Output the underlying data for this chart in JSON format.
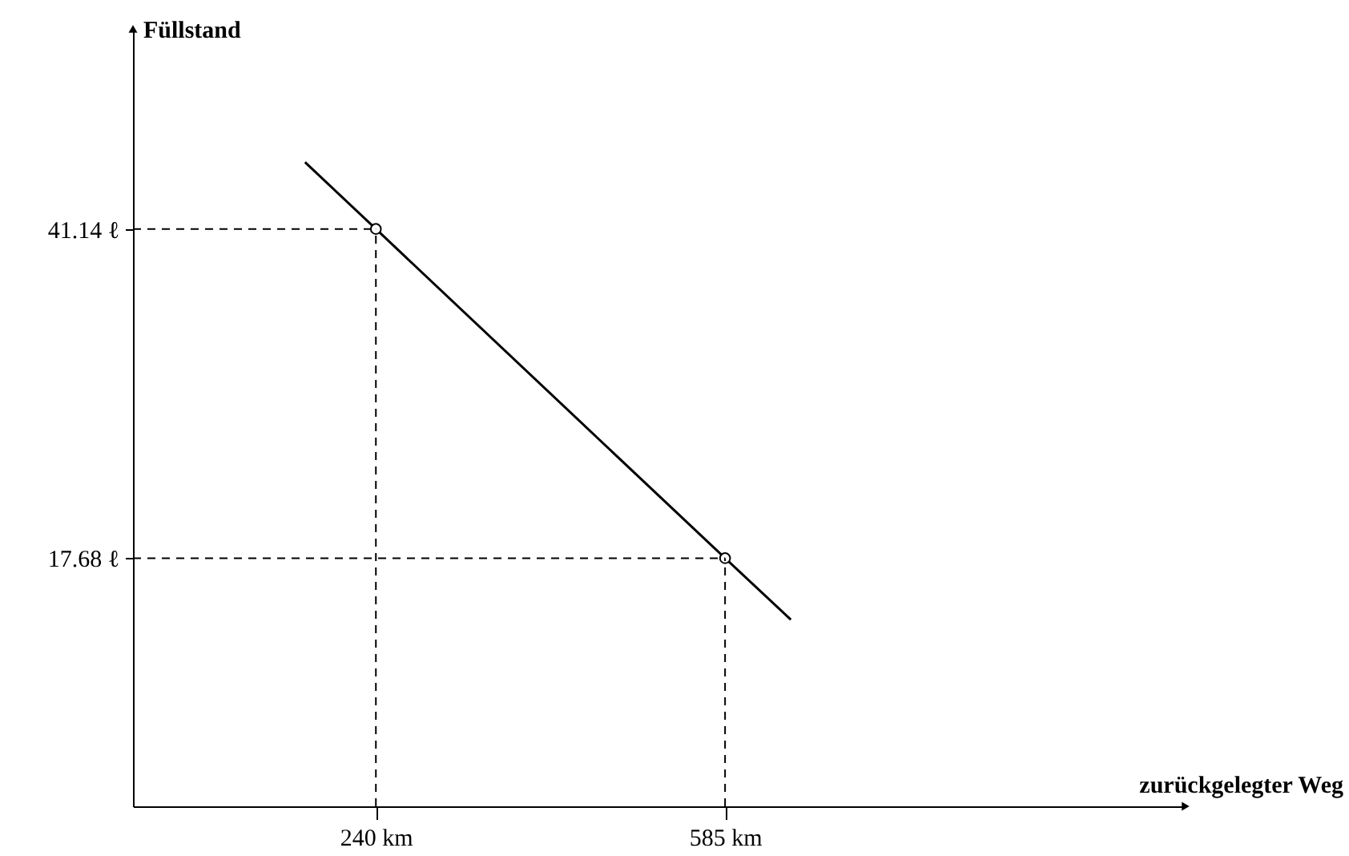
{
  "chart_data": {
    "type": "line",
    "xlabel": "zurückgelegter Weg",
    "ylabel": "Füllstand",
    "xlim": [
      0,
      1040
    ],
    "ylim": [
      0,
      55.4
    ],
    "xticks": [
      {
        "value": 240,
        "label": "240 km"
      },
      {
        "value": 585,
        "label": "585 km"
      }
    ],
    "yticks": [
      {
        "value": 17.68,
        "label": "17.68 ℓ"
      },
      {
        "value": 41.14,
        "label": "41.14 ℓ"
      }
    ],
    "series": [
      {
        "color": "#000000",
        "marker": "none",
        "line_style": "solid",
        "x": [
          170,
          240,
          585,
          650
        ],
        "values": [
          45.9,
          41.14,
          17.68,
          13.3
        ]
      },
      {
        "type": "scatter",
        "color": "#000000",
        "marker": "circle",
        "x": [
          240,
          585
        ],
        "values": [
          41.14,
          17.68
        ]
      }
    ],
    "ref_lines": [
      {
        "axis": "x",
        "value": 240,
        "line_style": "dashed",
        "color": "#000000"
      },
      {
        "axis": "x",
        "value": 585,
        "line_style": "dashed",
        "color": "#000000"
      },
      {
        "axis": "y",
        "value": 41.14,
        "line_style": "dashed",
        "color": "#000000"
      },
      {
        "axis": "y",
        "value": 17.68,
        "line_style": "dashed",
        "color": "#000000"
      }
    ],
    "grid": false
  }
}
